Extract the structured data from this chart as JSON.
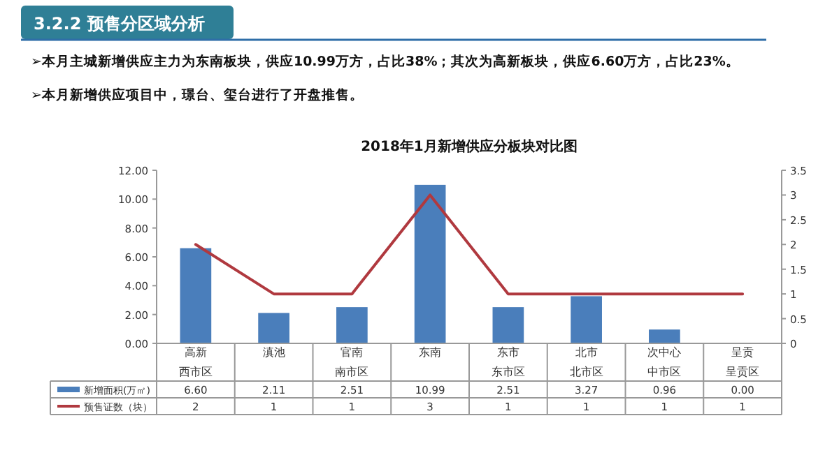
{
  "chart_data": {
    "type": "bar",
    "title": "2018年1月新增供应分板块对比图",
    "categories": [
      "高新",
      "滇池",
      "官南",
      "东南",
      "东市",
      "北市",
      "次中心",
      "呈贡"
    ],
    "series": [
      {
        "name": "新增面积(万㎡)",
        "color": "#4a7ebb",
        "values": [
          6.6,
          2.11,
          2.51,
          10.99,
          2.51,
          3.27,
          0.96,
          0.0
        ],
        "value_labels": [
          "6.60",
          "2.11",
          "2.51",
          "10.99",
          "2.51",
          "3.27",
          "0.96",
          "0.00"
        ]
      },
      {
        "name": "预售证数（块）",
        "type": "line",
        "axis": "y2",
        "color": "#b0393f",
        "values": [
          2,
          1,
          1,
          3,
          1,
          1,
          1,
          1
        ],
        "value_labels": [
          "2",
          "1",
          "1",
          "3",
          "1",
          "1",
          "1",
          "1"
        ]
      }
    ],
    "ylim": [
      0,
      12
    ],
    "yticks": [
      {
        "value": 0,
        "label": "0.00"
      },
      {
        "value": 2,
        "label": "2.00"
      },
      {
        "value": 4,
        "label": "4.00"
      },
      {
        "value": 6,
        "label": "6.00"
      },
      {
        "value": 8,
        "label": "8.00"
      },
      {
        "value": 10,
        "label": "10.00"
      },
      {
        "value": 12,
        "label": "12.00"
      }
    ],
    "y2lim": [
      0,
      3.5
    ],
    "y2ticks": [
      0,
      0.5,
      1,
      1.5,
      2,
      2.5,
      3,
      3.5
    ],
    "grid": false,
    "legend": "bottom",
    "marker": "none",
    "annotations": [
      "3.2.2    预售分区域分析",
      "➢本月主城新增供应主力为东南板块，供应10.99万方，占比38%；其次为高新板块，供应6.60万方，占比23%。",
      "➢本月新增供应项目中，璟台、玺台进行了开盘推售。",
      "西市区",
      "南市区",
      "东市区",
      "北市区",
      "中市区",
      "呈贡区"
    ]
  }
}
